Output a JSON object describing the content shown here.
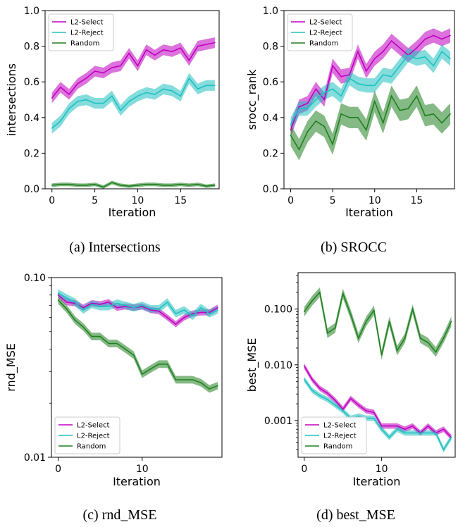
{
  "colors": {
    "l2_select": "#c000c0",
    "l2_reject": "#20c0c0",
    "random": "#208020"
  },
  "chart_data": [
    {
      "type": "line",
      "caption": "(a) Intersections",
      "xlabel": "Iteration",
      "ylabel": "intersections",
      "scale": "linear",
      "xlim": [
        -0.8,
        19.5
      ],
      "ylim": [
        0.0,
        1.0
      ],
      "xticks": [
        0,
        5,
        10,
        15
      ],
      "yticks": [
        0.0,
        0.2,
        0.4,
        0.6,
        0.8,
        1.0
      ],
      "ytick_labels": [
        "0.0",
        "0.2",
        "0.4",
        "0.6",
        "0.8",
        "1.0"
      ],
      "legend": "top-left",
      "x": [
        0,
        1,
        2,
        3,
        4,
        5,
        6,
        7,
        8,
        9,
        10,
        11,
        12,
        13,
        14,
        15,
        16,
        17,
        18,
        19
      ],
      "series": [
        {
          "name": "L2-Select",
          "color_key": "l2_select",
          "band": 0.03,
          "values": [
            0.51,
            0.57,
            0.53,
            0.59,
            0.62,
            0.66,
            0.65,
            0.68,
            0.69,
            0.76,
            0.69,
            0.78,
            0.75,
            0.78,
            0.77,
            0.79,
            0.72,
            0.8,
            0.81,
            0.82
          ]
        },
        {
          "name": "L2-Reject",
          "color_key": "l2_reject",
          "band": 0.03,
          "values": [
            0.34,
            0.38,
            0.45,
            0.49,
            0.5,
            0.48,
            0.48,
            0.52,
            0.44,
            0.49,
            0.52,
            0.54,
            0.53,
            0.56,
            0.55,
            0.52,
            0.62,
            0.56,
            0.58,
            0.58
          ]
        },
        {
          "name": "Random",
          "color_key": "random",
          "band": 0.01,
          "values": [
            0.02,
            0.025,
            0.025,
            0.02,
            0.02,
            0.025,
            0.01,
            0.035,
            0.02,
            0.015,
            0.02,
            0.025,
            0.025,
            0.02,
            0.02,
            0.025,
            0.02,
            0.025,
            0.015,
            0.02
          ]
        }
      ]
    },
    {
      "type": "line",
      "caption": "(b) SROCC",
      "xlabel": "Iteration",
      "ylabel": "srocc_rank",
      "scale": "linear",
      "xlim": [
        -0.8,
        19.5
      ],
      "ylim": [
        0.0,
        1.0
      ],
      "xticks": [
        0,
        5,
        10,
        15
      ],
      "yticks": [
        0.0,
        0.2,
        0.4,
        0.6,
        0.8,
        1.0
      ],
      "ytick_labels": [
        "0.0",
        "0.2",
        "0.4",
        "0.6",
        "0.8",
        "1.0"
      ],
      "legend": "top-left",
      "x": [
        0,
        1,
        2,
        3,
        4,
        5,
        6,
        7,
        8,
        9,
        10,
        11,
        12,
        13,
        14,
        15,
        16,
        17,
        18,
        19
      ],
      "series": [
        {
          "name": "L2-Select",
          "color_key": "l2_select",
          "band": 0.04,
          "values": [
            0.33,
            0.46,
            0.48,
            0.56,
            0.5,
            0.69,
            0.63,
            0.64,
            0.77,
            0.66,
            0.73,
            0.77,
            0.83,
            0.79,
            0.75,
            0.79,
            0.84,
            0.86,
            0.84,
            0.86
          ]
        },
        {
          "name": "L2-Reject",
          "color_key": "l2_reject",
          "band": 0.04,
          "values": [
            0.36,
            0.45,
            0.45,
            0.5,
            0.54,
            0.56,
            0.52,
            0.62,
            0.59,
            0.58,
            0.58,
            0.64,
            0.63,
            0.69,
            0.75,
            0.73,
            0.74,
            0.69,
            0.77,
            0.73
          ]
        },
        {
          "name": "Random",
          "color_key": "random",
          "band": 0.06,
          "values": [
            0.3,
            0.22,
            0.32,
            0.38,
            0.35,
            0.25,
            0.42,
            0.4,
            0.4,
            0.33,
            0.49,
            0.37,
            0.52,
            0.44,
            0.45,
            0.52,
            0.41,
            0.42,
            0.37,
            0.42
          ]
        }
      ]
    },
    {
      "type": "line",
      "caption": "(c) rnd_MSE",
      "xlabel": "Iteration",
      "ylabel": "rnd_MSE",
      "scale": "log",
      "xlim": [
        -0.8,
        19.5
      ],
      "ylim": [
        0.01,
        0.1
      ],
      "xticks": [
        0,
        10
      ],
      "yticks": [
        0.01,
        0.1
      ],
      "ytick_labels": [
        "0.01",
        "0.10"
      ],
      "minor_yticks": [
        0.02,
        0.03,
        0.04,
        0.05,
        0.06,
        0.07,
        0.08,
        0.09
      ],
      "legend": "bottom-left",
      "x": [
        0,
        1,
        2,
        3,
        4,
        5,
        6,
        7,
        8,
        9,
        10,
        11,
        12,
        13,
        14,
        15,
        16,
        17,
        18,
        19
      ],
      "series": [
        {
          "name": "L2-Select",
          "color_key": "l2_select",
          "band": 0.04,
          "values": [
            0.08,
            0.073,
            0.072,
            0.068,
            0.072,
            0.071,
            0.073,
            0.068,
            0.069,
            0.068,
            0.069,
            0.066,
            0.065,
            0.06,
            0.055,
            0.06,
            0.063,
            0.064,
            0.064,
            0.068
          ]
        },
        {
          "name": "L2-Reject",
          "color_key": "l2_reject",
          "band": 0.05,
          "values": [
            0.082,
            0.077,
            0.073,
            0.066,
            0.071,
            0.069,
            0.069,
            0.072,
            0.07,
            0.068,
            0.07,
            0.067,
            0.067,
            0.073,
            0.063,
            0.066,
            0.061,
            0.068,
            0.063,
            0.066
          ]
        },
        {
          "name": "Random",
          "color_key": "random",
          "band": 0.05,
          "values": [
            0.075,
            0.067,
            0.058,
            0.053,
            0.047,
            0.047,
            0.043,
            0.043,
            0.04,
            0.037,
            0.029,
            0.031,
            0.033,
            0.033,
            0.027,
            0.027,
            0.027,
            0.026,
            0.024,
            0.025
          ]
        }
      ]
    },
    {
      "type": "line",
      "caption": "(d) best_MSE",
      "xlabel": "Iteration",
      "ylabel": "best_MSE",
      "scale": "log",
      "xlim": [
        -0.8,
        19.5
      ],
      "ylim": [
        0.00022,
        0.45
      ],
      "xticks": [
        0,
        10
      ],
      "yticks": [
        0.001,
        0.01,
        0.1
      ],
      "ytick_labels": [
        "0.001",
        "0.010",
        "0.100"
      ],
      "minor_yticks": [
        0.0003,
        0.0004,
        0.0005,
        0.0006,
        0.0007,
        0.0008,
        0.0009,
        0.002,
        0.003,
        0.004,
        0.005,
        0.006,
        0.007,
        0.008,
        0.009,
        0.02,
        0.03,
        0.04,
        0.05,
        0.06,
        0.07,
        0.08,
        0.09,
        0.2,
        0.3,
        0.4
      ],
      "legend": "bottom-left",
      "x": [
        0,
        1,
        2,
        3,
        4,
        5,
        6,
        7,
        8,
        9,
        10,
        11,
        12,
        13,
        14,
        15,
        16,
        17,
        18,
        19
      ],
      "series": [
        {
          "name": "L2-Select",
          "color_key": "l2_select",
          "band": 0.12,
          "values": [
            0.0095,
            0.0055,
            0.0038,
            0.0031,
            0.0023,
            0.0016,
            0.0025,
            0.0019,
            0.0015,
            0.0014,
            0.0008,
            0.0008,
            0.0008,
            0.0007,
            0.0008,
            0.0006,
            0.0008,
            0.0006,
            0.0007,
            0.0005
          ]
        },
        {
          "name": "L2-Reject",
          "color_key": "l2_reject",
          "band": 0.12,
          "values": [
            0.0055,
            0.0035,
            0.0028,
            0.0024,
            0.0019,
            0.0015,
            0.0011,
            0.0012,
            0.0011,
            0.0011,
            0.0007,
            0.0005,
            0.0007,
            0.0006,
            0.0006,
            0.0006,
            0.0006,
            0.0006,
            0.0003,
            0.0005
          ]
        },
        {
          "name": "Random",
          "color_key": "random",
          "band": 0.22,
          "values": [
            0.09,
            0.14,
            0.2,
            0.037,
            0.046,
            0.19,
            0.08,
            0.03,
            0.06,
            0.095,
            0.015,
            0.06,
            0.018,
            0.03,
            0.1,
            0.03,
            0.025,
            0.017,
            0.03,
            0.06
          ]
        }
      ]
    }
  ]
}
